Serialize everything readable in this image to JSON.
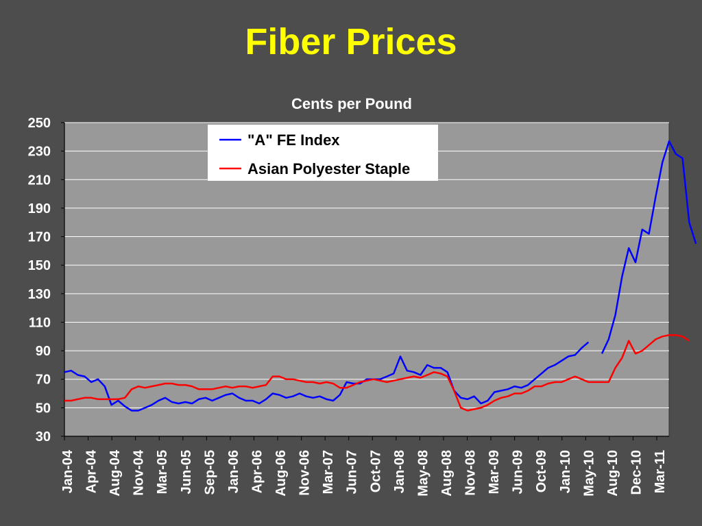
{
  "slide": {
    "title": "Fiber Prices"
  },
  "chart_data": {
    "type": "line",
    "title": "",
    "subtitle": "Cents per Pound",
    "xlabel": "",
    "ylabel": "",
    "ylim": [
      30,
      250
    ],
    "yticks": [
      30,
      50,
      70,
      90,
      110,
      130,
      150,
      170,
      190,
      210,
      230,
      250
    ],
    "x_tick_labels": [
      "Jan-04",
      "Apr-04",
      "Aug-04",
      "Nov-04",
      "Mar-05",
      "Jun-05",
      "Sep-05",
      "Jan-06",
      "Apr-06",
      "Aug-06",
      "Nov-06",
      "Mar-07",
      "Jun-07",
      "Oct-07",
      "Jan-08",
      "May-08",
      "Aug-08",
      "Nov-08",
      "Mar-09",
      "Jun-09",
      "Oct-09",
      "Jan-10",
      "May-10",
      "Aug-10",
      "Dec-10",
      "Mar-11"
    ],
    "x_range": [
      "Jan-04",
      "Jun-11"
    ],
    "grid": "horizontal",
    "legend_position": "top-center",
    "colors": {
      "background": "#4d4d4d",
      "plot_area": "#999999",
      "gridline": "#ffffff",
      "title": "#ffff00",
      "text": "#ffffff"
    },
    "series": [
      {
        "name": "\"A\" FE Index",
        "color": "#0000ff",
        "points": [
          [
            "2004-01",
            75
          ],
          [
            "2004-02",
            76
          ],
          [
            "2004-03",
            73
          ],
          [
            "2004-04",
            72
          ],
          [
            "2004-05",
            68
          ],
          [
            "2004-06",
            70
          ],
          [
            "2004-07",
            65
          ],
          [
            "2004-08",
            52
          ],
          [
            "2004-09",
            55
          ],
          [
            "2004-10",
            51
          ],
          [
            "2004-11",
            48
          ],
          [
            "2004-12",
            48
          ],
          [
            "2005-01",
            50
          ],
          [
            "2005-02",
            52
          ],
          [
            "2005-03",
            55
          ],
          [
            "2005-04",
            57
          ],
          [
            "2005-05",
            54
          ],
          [
            "2005-06",
            53
          ],
          [
            "2005-07",
            54
          ],
          [
            "2005-08",
            53
          ],
          [
            "2005-09",
            56
          ],
          [
            "2005-10",
            57
          ],
          [
            "2005-11",
            55
          ],
          [
            "2005-12",
            57
          ],
          [
            "2006-01",
            59
          ],
          [
            "2006-02",
            60
          ],
          [
            "2006-03",
            57
          ],
          [
            "2006-04",
            55
          ],
          [
            "2006-05",
            55
          ],
          [
            "2006-06",
            53
          ],
          [
            "2006-07",
            56
          ],
          [
            "2006-08",
            60
          ],
          [
            "2006-09",
            59
          ],
          [
            "2006-10",
            57
          ],
          [
            "2006-11",
            58
          ],
          [
            "2006-12",
            60
          ],
          [
            "2007-01",
            58
          ],
          [
            "2007-02",
            57
          ],
          [
            "2007-03",
            58
          ],
          [
            "2007-04",
            56
          ],
          [
            "2007-05",
            55
          ],
          [
            "2007-06",
            59
          ],
          [
            "2007-07",
            68
          ],
          [
            "2007-08",
            67
          ],
          [
            "2007-09",
            67
          ],
          [
            "2007-10",
            70
          ],
          [
            "2007-11",
            70
          ],
          [
            "2007-12",
            70
          ],
          [
            "2008-01",
            72
          ],
          [
            "2008-02",
            74
          ],
          [
            "2008-03",
            86
          ],
          [
            "2008-04",
            76
          ],
          [
            "2008-05",
            75
          ],
          [
            "2008-06",
            73
          ],
          [
            "2008-07",
            80
          ],
          [
            "2008-08",
            78
          ],
          [
            "2008-09",
            78
          ],
          [
            "2008-10",
            75
          ],
          [
            "2008-11",
            62
          ],
          [
            "2008-12",
            57
          ],
          [
            "2009-01",
            56
          ],
          [
            "2009-02",
            58
          ],
          [
            "2009-03",
            53
          ],
          [
            "2009-04",
            55
          ],
          [
            "2009-05",
            61
          ],
          [
            "2009-06",
            62
          ],
          [
            "2009-07",
            63
          ],
          [
            "2009-08",
            65
          ],
          [
            "2009-09",
            64
          ],
          [
            "2009-10",
            66
          ],
          [
            "2009-11",
            70
          ],
          [
            "2009-12",
            74
          ],
          [
            "2010-01",
            78
          ],
          [
            "2010-02",
            80
          ],
          [
            "2010-03",
            83
          ],
          [
            "2010-04",
            86
          ],
          [
            "2010-05",
            87
          ],
          [
            "2010-06",
            92
          ],
          [
            "2010-07",
            96
          ],
          [
            "2010-08",
            null
          ],
          [
            "2010-09",
            88
          ],
          [
            "2010-10",
            98
          ],
          [
            "2010-11",
            115
          ],
          [
            "2010-12",
            142
          ],
          [
            "2011-01",
            162
          ],
          [
            "2011-02",
            152
          ],
          [
            "2011-03",
            175
          ],
          [
            "2011-04",
            172
          ],
          [
            "2011-05",
            198
          ],
          [
            "2011-06",
            222
          ],
          [
            "2011-07",
            237
          ],
          [
            "2011-08",
            228
          ],
          [
            "2011-09",
            225
          ],
          [
            "2011-10",
            180
          ],
          [
            "2011-11",
            165
          ]
        ]
      },
      {
        "name": "Asian Polyester Staple",
        "color": "#ff0000",
        "points": [
          [
            "2004-01",
            55
          ],
          [
            "2004-02",
            55
          ],
          [
            "2004-03",
            56
          ],
          [
            "2004-04",
            57
          ],
          [
            "2004-05",
            57
          ],
          [
            "2004-06",
            56
          ],
          [
            "2004-07",
            56
          ],
          [
            "2004-08",
            56
          ],
          [
            "2004-09",
            56
          ],
          [
            "2004-10",
            57
          ],
          [
            "2004-11",
            63
          ],
          [
            "2004-12",
            65
          ],
          [
            "2005-01",
            64
          ],
          [
            "2005-02",
            65
          ],
          [
            "2005-03",
            66
          ],
          [
            "2005-04",
            67
          ],
          [
            "2005-05",
            67
          ],
          [
            "2005-06",
            66
          ],
          [
            "2005-07",
            66
          ],
          [
            "2005-08",
            65
          ],
          [
            "2005-09",
            63
          ],
          [
            "2005-10",
            63
          ],
          [
            "2005-11",
            63
          ],
          [
            "2005-12",
            64
          ],
          [
            "2006-01",
            65
          ],
          [
            "2006-02",
            64
          ],
          [
            "2006-03",
            65
          ],
          [
            "2006-04",
            65
          ],
          [
            "2006-05",
            64
          ],
          [
            "2006-06",
            65
          ],
          [
            "2006-07",
            66
          ],
          [
            "2006-08",
            72
          ],
          [
            "2006-09",
            72
          ],
          [
            "2006-10",
            70
          ],
          [
            "2006-11",
            70
          ],
          [
            "2006-12",
            69
          ],
          [
            "2007-01",
            68
          ],
          [
            "2007-02",
            68
          ],
          [
            "2007-03",
            67
          ],
          [
            "2007-04",
            68
          ],
          [
            "2007-05",
            67
          ],
          [
            "2007-06",
            64
          ],
          [
            "2007-07",
            64
          ],
          [
            "2007-08",
            66
          ],
          [
            "2007-09",
            68
          ],
          [
            "2007-10",
            69
          ],
          [
            "2007-11",
            70
          ],
          [
            "2007-12",
            69
          ],
          [
            "2008-01",
            68
          ],
          [
            "2008-02",
            69
          ],
          [
            "2008-03",
            70
          ],
          [
            "2008-04",
            71
          ],
          [
            "2008-05",
            72
          ],
          [
            "2008-06",
            71
          ],
          [
            "2008-07",
            73
          ],
          [
            "2008-08",
            75
          ],
          [
            "2008-09",
            74
          ],
          [
            "2008-10",
            72
          ],
          [
            "2008-11",
            62
          ],
          [
            "2008-12",
            50
          ],
          [
            "2009-01",
            48
          ],
          [
            "2009-02",
            49
          ],
          [
            "2009-03",
            50
          ],
          [
            "2009-04",
            52
          ],
          [
            "2009-05",
            55
          ],
          [
            "2009-06",
            57
          ],
          [
            "2009-07",
            58
          ],
          [
            "2009-08",
            60
          ],
          [
            "2009-09",
            60
          ],
          [
            "2009-10",
            62
          ],
          [
            "2009-11",
            65
          ],
          [
            "2009-12",
            65
          ],
          [
            "2010-01",
            67
          ],
          [
            "2010-02",
            68
          ],
          [
            "2010-03",
            68
          ],
          [
            "2010-04",
            70
          ],
          [
            "2010-05",
            72
          ],
          [
            "2010-06",
            70
          ],
          [
            "2010-07",
            68
          ],
          [
            "2010-08",
            68
          ],
          [
            "2010-09",
            68
          ],
          [
            "2010-10",
            68
          ],
          [
            "2010-11",
            78
          ],
          [
            "2010-12",
            85
          ],
          [
            "2011-01",
            97
          ],
          [
            "2011-02",
            88
          ],
          [
            "2011-03",
            90
          ],
          [
            "2011-04",
            94
          ],
          [
            "2011-05",
            98
          ],
          [
            "2011-06",
            100
          ],
          [
            "2011-07",
            101
          ],
          [
            "2011-08",
            101
          ],
          [
            "2011-09",
            100
          ],
          [
            "2011-10",
            97
          ]
        ]
      }
    ]
  }
}
